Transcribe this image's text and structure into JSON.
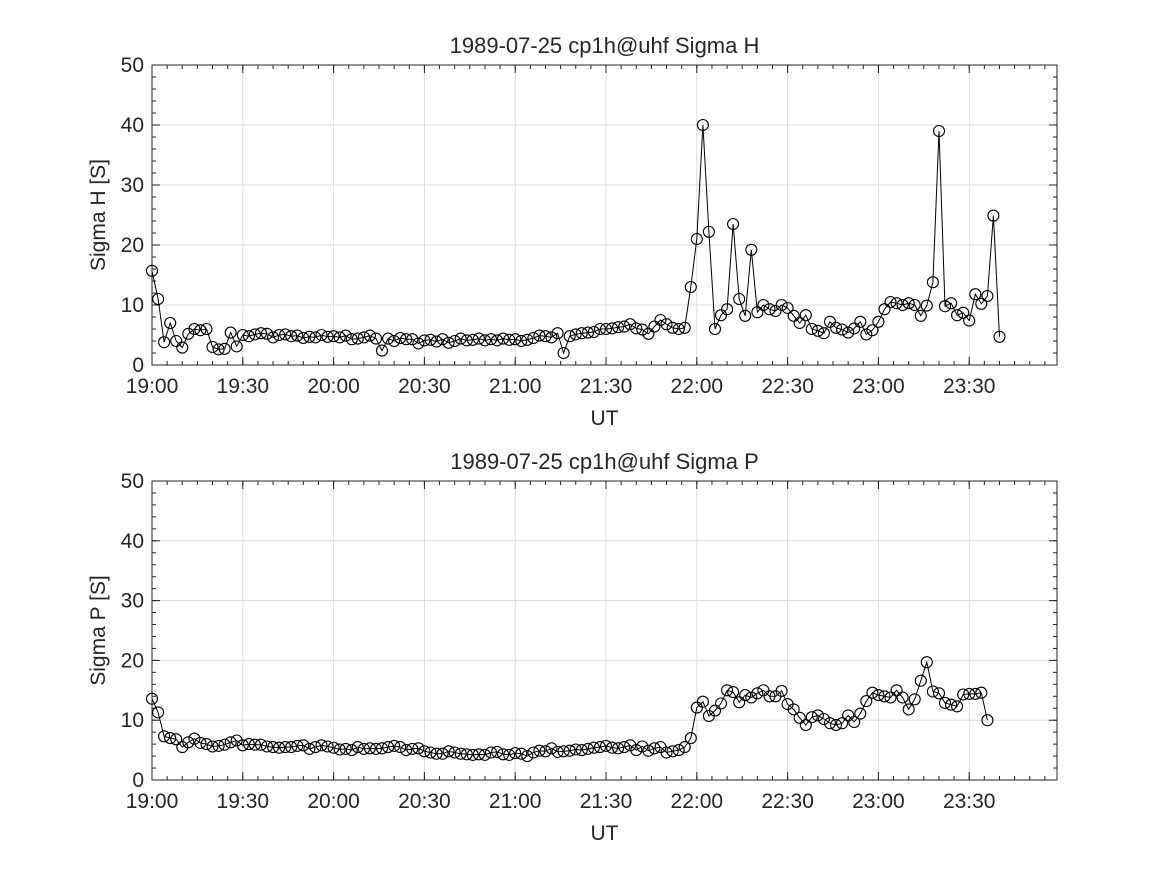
{
  "chart_data": [
    {
      "type": "line",
      "title": "1989-07-25  cp1h@uhf Sigma H",
      "xlabel": "UT",
      "ylabel": "Sigma H [S]",
      "xlim": [
        "19:00",
        "23:59"
      ],
      "ylim": [
        0,
        50
      ],
      "yticks": [
        0,
        10,
        20,
        30,
        40,
        50
      ],
      "xticks": [
        "19:00",
        "19:30",
        "20:00",
        "20:30",
        "21:00",
        "21:30",
        "22:00",
        "22:30",
        "23:00",
        "23:30"
      ],
      "grid": true,
      "marker": "circle",
      "x_start": "19:00",
      "x_step_minutes": 2,
      "values": [
        15.7,
        11,
        3.8,
        7,
        4,
        2.9,
        5.2,
        6,
        5.8,
        6,
        3,
        2.6,
        2.7,
        5.4,
        3.1,
        5,
        4.8,
        5.1,
        5.3,
        5.2,
        4.6,
        5,
        5.1,
        4.8,
        4.9,
        4.5,
        4.7,
        4.6,
        5,
        4.7,
        4.8,
        4.6,
        4.9,
        4.3,
        4.4,
        4.6,
        4.9,
        4.4,
        2.4,
        4.4,
        4,
        4.5,
        4.3,
        4.3,
        3.6,
        4.1,
        4.2,
        3.9,
        4.3,
        3.7,
        4,
        4.4,
        4.1,
        4.2,
        4.4,
        4.1,
        4.3,
        4.1,
        4.4,
        4.2,
        4.3,
        4,
        4.2,
        4.5,
        4.9,
        4.8,
        4.6,
        5.3,
        2,
        4.8,
        5.1,
        5.3,
        5.4,
        5.5,
        6,
        6,
        6.1,
        6.3,
        6.4,
        6.8,
        6.1,
        5.9,
        5.2,
        6.4,
        7.5,
        6.8,
        6.2,
        6,
        6.2,
        13,
        21,
        40,
        22.2,
        6,
        8.3,
        9.3,
        23.5,
        11,
        8.2,
        19.2,
        8.8,
        10,
        9.3,
        9,
        10,
        9.5,
        8.2,
        7,
        8.3,
        6,
        5.7,
        5.3,
        7.2,
        6.2,
        5.9,
        5.4,
        6.1,
        7.2,
        5.1,
        5.8,
        7.2,
        9.3,
        10.5,
        10.3,
        10,
        10.3,
        10,
        8.2,
        9.9,
        13.8,
        39,
        9.8,
        10.3,
        8.3,
        8.7,
        7.4,
        11.8,
        10.2,
        11.5,
        24.9,
        4.7
      ]
    },
    {
      "type": "line",
      "title": "1989-07-25  cp1h@uhf Sigma P",
      "xlabel": "UT",
      "ylabel": "Sigma P [S]",
      "xlim": [
        "19:00",
        "23:59"
      ],
      "ylim": [
        0,
        50
      ],
      "yticks": [
        0,
        10,
        20,
        30,
        40,
        50
      ],
      "xticks": [
        "19:00",
        "19:30",
        "20:00",
        "20:30",
        "21:00",
        "21:30",
        "22:00",
        "22:30",
        "23:00",
        "23:30"
      ],
      "grid": true,
      "marker": "circle",
      "x_start": "19:00",
      "x_step_minutes": 2,
      "values": [
        13.6,
        11.3,
        7.3,
        7,
        6.8,
        5.5,
        6.3,
        6.9,
        6.2,
        6,
        5.6,
        5.7,
        5.9,
        6.3,
        6.6,
        5.8,
        6,
        5.9,
        5.9,
        5.6,
        5.5,
        5.4,
        5.5,
        5.5,
        5.7,
        5.8,
        5.2,
        5.5,
        5.8,
        5.6,
        5.4,
        5.1,
        5.2,
        5,
        5.5,
        5.2,
        5.3,
        5.2,
        5.3,
        5.5,
        5.7,
        5.5,
        5,
        5.2,
        5.3,
        4.8,
        4.6,
        4.4,
        4.4,
        4.8,
        4.6,
        4.4,
        4.3,
        4.2,
        4.3,
        4.2,
        4.6,
        4.7,
        4.3,
        4.2,
        4.5,
        4.4,
        4,
        4.6,
        4.9,
        4.8,
        5.3,
        4.7,
        4.8,
        4.9,
        5.1,
        5,
        5.2,
        5.4,
        5.5,
        5.7,
        5.4,
        5.3,
        5.5,
        5.8,
        5,
        5.6,
        4.9,
        5.3,
        5.5,
        4.6,
        4.8,
        5,
        5.5,
        7,
        12.1,
        13.1,
        10.7,
        11.6,
        12.8,
        15,
        14.7,
        13,
        14.2,
        13.8,
        14.5,
        15,
        14,
        14,
        14.9,
        12.7,
        11.8,
        10.4,
        9.2,
        10.5,
        10.8,
        10.2,
        9.5,
        9.2,
        9.5,
        10.8,
        9.7,
        11.1,
        13.2,
        14.6,
        14.2,
        14,
        13.8,
        15,
        13.8,
        11.8,
        13.5,
        16.6,
        19.7,
        14.8,
        14.5,
        12.9,
        12.6,
        12.3,
        14.3,
        14.4,
        14.4,
        14.6,
        10
      ]
    }
  ]
}
